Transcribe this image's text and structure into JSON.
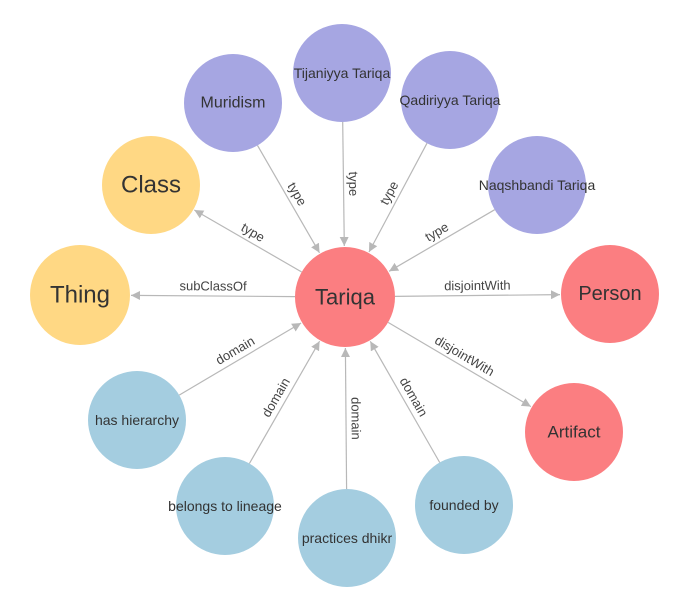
{
  "colors": {
    "center": "#fb7e81",
    "class": "#ffd884",
    "instance": "#a6a6e2",
    "property": "#a4cde0",
    "disjoint": "#fb7e81",
    "edge": "#b8b8b8"
  },
  "nodes": [
    {
      "id": "tariqa",
      "label": "Tariqa",
      "group": "center"
    },
    {
      "id": "thing",
      "label": "Thing",
      "group": "class"
    },
    {
      "id": "class",
      "label": "Class",
      "group": "class"
    },
    {
      "id": "muridism",
      "label": "Muridism",
      "group": "instance"
    },
    {
      "id": "tijaniyya",
      "label": "Tijaniyya Tariqa",
      "group": "instance"
    },
    {
      "id": "qadiriyya",
      "label": "Qadiriyya Tariqa",
      "group": "instance"
    },
    {
      "id": "naqshbandi",
      "label": "Naqshbandi Tariqa",
      "group": "instance"
    },
    {
      "id": "person",
      "label": "Person",
      "group": "disjoint"
    },
    {
      "id": "artifact",
      "label": "Artifact",
      "group": "disjoint"
    },
    {
      "id": "has_hierarchy",
      "label": "has hierarchy",
      "group": "property"
    },
    {
      "id": "belongs_lineage",
      "label": "belongs to lineage",
      "group": "property"
    },
    {
      "id": "practices_dhikr",
      "label": "practices dhikr",
      "group": "property"
    },
    {
      "id": "founded_by",
      "label": "founded by",
      "group": "property"
    }
  ],
  "edges": [
    {
      "from": "tariqa",
      "to": "thing",
      "label": "subClassOf"
    },
    {
      "from": "tariqa",
      "to": "class",
      "label": "type"
    },
    {
      "from": "muridism",
      "to": "tariqa",
      "label": "type"
    },
    {
      "from": "tijaniyya",
      "to": "tariqa",
      "label": "type"
    },
    {
      "from": "qadiriyya",
      "to": "tariqa",
      "label": "type"
    },
    {
      "from": "naqshbandi",
      "to": "tariqa",
      "label": "type"
    },
    {
      "from": "tariqa",
      "to": "person",
      "label": "disjointWith"
    },
    {
      "from": "tariqa",
      "to": "artifact",
      "label": "disjointWith"
    },
    {
      "from": "has_hierarchy",
      "to": "tariqa",
      "label": "domain"
    },
    {
      "from": "belongs_lineage",
      "to": "tariqa",
      "label": "domain"
    },
    {
      "from": "practices_dhikr",
      "to": "tariqa",
      "label": "domain"
    },
    {
      "from": "founded_by",
      "to": "tariqa",
      "label": "domain"
    }
  ]
}
